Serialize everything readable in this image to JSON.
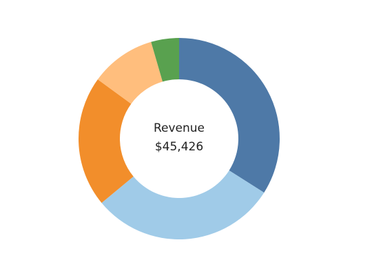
{
  "chart_data": {
    "type": "pie",
    "variant": "donut",
    "center_label": "Revenue",
    "center_value": "$45,426",
    "legend": "none",
    "slices": [
      {
        "value": 34.0,
        "color": "#4e79a7"
      },
      {
        "value": 30.0,
        "color": "#a0cbe8"
      },
      {
        "value": 21.0,
        "color": "#f28e2b"
      },
      {
        "value": 10.5,
        "color": "#ffbe7d"
      },
      {
        "value": 4.5,
        "color": "#59a14f"
      }
    ]
  }
}
